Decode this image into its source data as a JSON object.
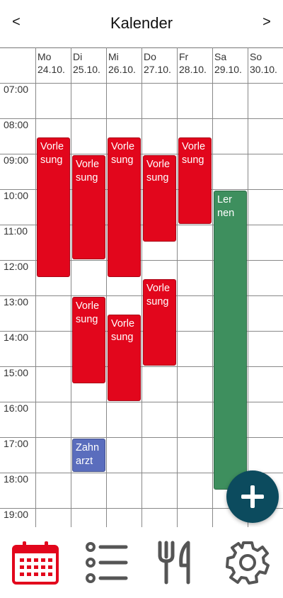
{
  "header": {
    "title": "Kalender",
    "prev_label": "<",
    "next_label": ">"
  },
  "days": [
    {
      "name": "Mo",
      "date": "24.10."
    },
    {
      "name": "Di",
      "date": "25.10."
    },
    {
      "name": "Mi",
      "date": "26.10."
    },
    {
      "name": "Do",
      "date": "27.10."
    },
    {
      "name": "Fr",
      "date": "28.10."
    },
    {
      "name": "Sa",
      "date": "29.10."
    },
    {
      "name": "So",
      "date": "30.10."
    }
  ],
  "hours": [
    "07:00",
    "08:00",
    "09:00",
    "10:00",
    "11:00",
    "12:00",
    "13:00",
    "14:00",
    "15:00",
    "16:00",
    "17:00",
    "18:00",
    "19:00"
  ],
  "events": [
    {
      "title": "Vorle sung",
      "day": 0,
      "start": "08:30",
      "end": "12:30",
      "color": "#e2061c"
    },
    {
      "title": "Vorle sung",
      "day": 1,
      "start": "09:00",
      "end": "12:00",
      "color": "#e2061c"
    },
    {
      "title": "Vorle sung",
      "day": 1,
      "start": "13:00",
      "end": "15:30",
      "color": "#e2061c"
    },
    {
      "title": "Zahn arzt",
      "day": 1,
      "start": "17:00",
      "end": "18:00",
      "color": "#5a6dbd"
    },
    {
      "title": "Vorle sung",
      "day": 2,
      "start": "08:30",
      "end": "12:30",
      "color": "#e2061c"
    },
    {
      "title": "Vorle sung",
      "day": 2,
      "start": "13:30",
      "end": "16:00",
      "color": "#e2061c"
    },
    {
      "title": "Vorle sung",
      "day": 3,
      "start": "09:00",
      "end": "11:30",
      "color": "#e2061c"
    },
    {
      "title": "Vorle sung",
      "day": 3,
      "start": "12:30",
      "end": "15:00",
      "color": "#e2061c"
    },
    {
      "title": "Vorle sung",
      "day": 4,
      "start": "08:30",
      "end": "11:00",
      "color": "#e2061c"
    },
    {
      "title": "Ler nen",
      "day": 5,
      "start": "10:00",
      "end": "18:30",
      "color": "#3e8f5e"
    }
  ],
  "fab": {
    "icon": "plus-icon",
    "color": "#0c4b5e"
  },
  "bottom_nav": [
    {
      "icon": "calendar-icon",
      "active": true,
      "color": "#e2061c"
    },
    {
      "icon": "list-icon",
      "active": false,
      "color": "#555555"
    },
    {
      "icon": "fork-knife-icon",
      "active": false,
      "color": "#555555"
    },
    {
      "icon": "gear-icon",
      "active": false,
      "color": "#555555"
    }
  ]
}
